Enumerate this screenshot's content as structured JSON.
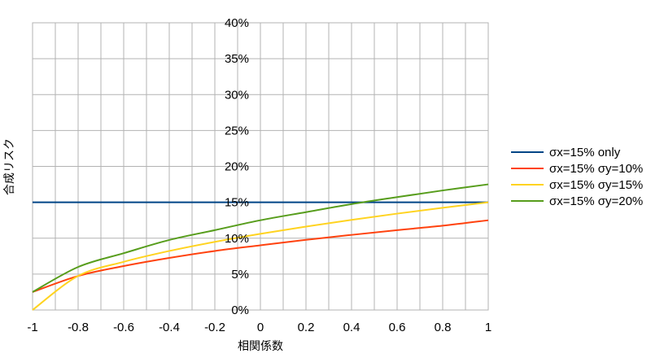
{
  "chart_data": {
    "type": "line",
    "xlabel": "相関係数",
    "ylabel": "合成リスク",
    "xlim": [
      -1,
      1
    ],
    "ylim": [
      0,
      0.4
    ],
    "x_ticks": [
      "-1",
      "-0.8",
      "-0.6",
      "-0.4",
      "-0.2",
      "0",
      "0.2",
      "0.4",
      "0.6",
      "0.8",
      "1"
    ],
    "y_ticks": [
      "0%",
      "5%",
      "10%",
      "15%",
      "20%",
      "25%",
      "30%",
      "35%",
      "40%"
    ],
    "grid": true,
    "legend_position": "right",
    "x": [
      -1,
      -0.8,
      -0.6,
      -0.4,
      -0.2,
      0,
      0.2,
      0.4,
      0.6,
      0.8,
      1
    ],
    "series": [
      {
        "name": "σx=15% only",
        "color": "#004586",
        "values": [
          0.15,
          0.15,
          0.15,
          0.15,
          0.15,
          0.15,
          0.15,
          0.15,
          0.15,
          0.15,
          0.15
        ]
      },
      {
        "name": "σx=15% σy=10%",
        "color": "#ff420e",
        "values": [
          0.025,
          0.0474,
          0.0612,
          0.0725,
          0.0822,
          0.0901,
          0.0977,
          0.1046,
          0.1112,
          0.1174,
          0.125
        ]
      },
      {
        "name": "σx=15% σy=15%",
        "color": "#ffd320",
        "values": [
          0.0,
          0.0474,
          0.0671,
          0.0822,
          0.0949,
          0.1061,
          0.1162,
          0.1255,
          0.1342,
          0.1423,
          0.15
        ]
      },
      {
        "name": "σx=15% σy=20%",
        "color": "#579d1c",
        "values": [
          0.025,
          0.0599,
          0.0791,
          0.0975,
          0.1112,
          0.125,
          0.1363,
          0.1475,
          0.1572,
          0.1665,
          0.175
        ]
      }
    ]
  }
}
